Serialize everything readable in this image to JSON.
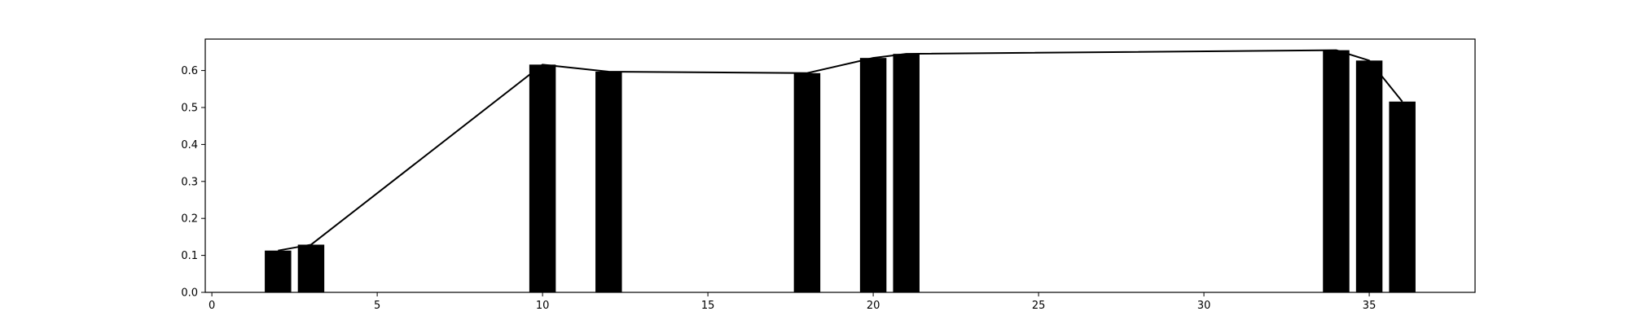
{
  "chart_data": {
    "type": "bar",
    "title": "",
    "xlabel": "",
    "ylabel": "",
    "xlim": [
      -0.2,
      38.2
    ],
    "ylim": [
      0.0,
      0.685
    ],
    "grid": false,
    "legend": "none",
    "xticks": [
      0,
      5,
      10,
      15,
      20,
      25,
      30,
      35
    ],
    "yticks": [
      0.0,
      0.1,
      0.2,
      0.3,
      0.4,
      0.5,
      0.6
    ],
    "bar_width": 0.8,
    "bar_color": "#000000",
    "line_color": "#000000",
    "series": [
      {
        "type": "bar",
        "x": [
          2,
          3,
          10,
          12,
          18,
          20,
          21,
          34,
          35,
          36
        ],
        "values": [
          0.113,
          0.129,
          0.616,
          0.597,
          0.593,
          0.634,
          0.645,
          0.655,
          0.627,
          0.516
        ]
      },
      {
        "type": "line",
        "x": [
          2,
          3,
          10,
          12,
          18,
          20,
          21,
          34,
          35,
          36
        ],
        "values": [
          0.113,
          0.129,
          0.616,
          0.597,
          0.593,
          0.634,
          0.645,
          0.655,
          0.627,
          0.516
        ]
      }
    ]
  }
}
